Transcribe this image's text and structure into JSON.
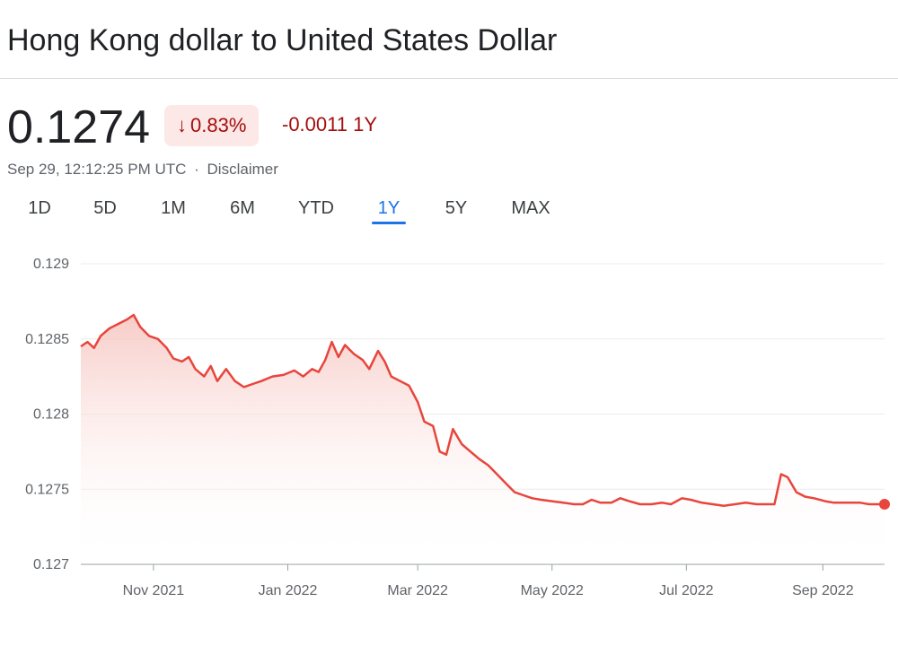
{
  "title": "Hong Kong dollar to United States Dollar",
  "quote": {
    "price": "0.1274",
    "change_arrow": "↓",
    "change_percent": "0.83%",
    "change_abs": "-0.0011 1Y",
    "timestamp": "Sep 29, 12:12:25 PM UTC",
    "separator": "·",
    "disclaimer": "Disclaimer"
  },
  "range_tabs": [
    {
      "label": "1D"
    },
    {
      "label": "5D"
    },
    {
      "label": "1M"
    },
    {
      "label": "6M"
    },
    {
      "label": "YTD"
    },
    {
      "label": "1Y",
      "active": true
    },
    {
      "label": "5Y"
    },
    {
      "label": "MAX"
    }
  ],
  "colors": {
    "line": "#e8453c",
    "fill_top": "#f6c6c1",
    "negative_text": "#a50e0e",
    "active_tab": "#1a73e8"
  },
  "chart_data": {
    "type": "area",
    "ylim": [
      0.127,
      0.129
    ],
    "yticks": [
      0.129,
      0.1285,
      0.128,
      0.1275,
      0.127
    ],
    "ytick_labels": [
      "0.129",
      "0.1285",
      "0.128",
      "0.1275",
      "0.127"
    ],
    "xlim": [
      "2021-09-29",
      "2022-09-29"
    ],
    "xticks": [
      {
        "date": "2021-11-01",
        "label": "Nov 2021"
      },
      {
        "date": "2022-01-01",
        "label": "Jan 2022"
      },
      {
        "date": "2022-03-01",
        "label": "Mar 2022"
      },
      {
        "date": "2022-05-01",
        "label": "May 2022"
      },
      {
        "date": "2022-07-01",
        "label": "Jul 2022"
      },
      {
        "date": "2022-09-01",
        "label": "Sep 2022"
      }
    ],
    "grid": true,
    "series": [
      {
        "points": [
          [
            "2021-09-29",
            0.12845
          ],
          [
            "2021-10-02",
            0.12848
          ],
          [
            "2021-10-05",
            0.12844
          ],
          [
            "2021-10-08",
            0.12852
          ],
          [
            "2021-10-12",
            0.12857
          ],
          [
            "2021-10-16",
            0.1286
          ],
          [
            "2021-10-20",
            0.12863
          ],
          [
            "2021-10-23",
            0.12866
          ],
          [
            "2021-10-26",
            0.12858
          ],
          [
            "2021-10-30",
            0.12852
          ],
          [
            "2021-11-03",
            0.1285
          ],
          [
            "2021-11-07",
            0.12844
          ],
          [
            "2021-11-10",
            0.12837
          ],
          [
            "2021-11-14",
            0.12835
          ],
          [
            "2021-11-17",
            0.12838
          ],
          [
            "2021-11-20",
            0.1283
          ],
          [
            "2021-11-24",
            0.12825
          ],
          [
            "2021-11-27",
            0.12832
          ],
          [
            "2021-11-30",
            0.12822
          ],
          [
            "2021-12-04",
            0.1283
          ],
          [
            "2021-12-08",
            0.12822
          ],
          [
            "2021-12-12",
            0.12818
          ],
          [
            "2021-12-16",
            0.1282
          ],
          [
            "2021-12-20",
            0.12822
          ],
          [
            "2021-12-25",
            0.12825
          ],
          [
            "2021-12-30",
            0.12826
          ],
          [
            "2022-01-04",
            0.12829
          ],
          [
            "2022-01-08",
            0.12825
          ],
          [
            "2022-01-12",
            0.1283
          ],
          [
            "2022-01-15",
            0.12828
          ],
          [
            "2022-01-18",
            0.12836
          ],
          [
            "2022-01-21",
            0.12848
          ],
          [
            "2022-01-24",
            0.12838
          ],
          [
            "2022-01-27",
            0.12846
          ],
          [
            "2022-01-31",
            0.1284
          ],
          [
            "2022-02-04",
            0.12836
          ],
          [
            "2022-02-07",
            0.1283
          ],
          [
            "2022-02-11",
            0.12842
          ],
          [
            "2022-02-14",
            0.12835
          ],
          [
            "2022-02-17",
            0.12825
          ],
          [
            "2022-02-21",
            0.12822
          ],
          [
            "2022-02-25",
            0.12819
          ],
          [
            "2022-03-01",
            0.12808
          ],
          [
            "2022-03-04",
            0.12795
          ],
          [
            "2022-03-08",
            0.12792
          ],
          [
            "2022-03-11",
            0.12775
          ],
          [
            "2022-03-14",
            0.12773
          ],
          [
            "2022-03-17",
            0.1279
          ],
          [
            "2022-03-21",
            0.1278
          ],
          [
            "2022-03-25",
            0.12775
          ],
          [
            "2022-03-29",
            0.1277
          ],
          [
            "2022-04-02",
            0.12766
          ],
          [
            "2022-04-06",
            0.1276
          ],
          [
            "2022-04-10",
            0.12754
          ],
          [
            "2022-04-14",
            0.12748
          ],
          [
            "2022-04-18",
            0.12746
          ],
          [
            "2022-04-22",
            0.12744
          ],
          [
            "2022-04-26",
            0.12743
          ],
          [
            "2022-05-01",
            0.12742
          ],
          [
            "2022-05-06",
            0.12741
          ],
          [
            "2022-05-11",
            0.1274
          ],
          [
            "2022-05-15",
            0.1274
          ],
          [
            "2022-05-19",
            0.12743
          ],
          [
            "2022-05-23",
            0.12741
          ],
          [
            "2022-05-28",
            0.12741
          ],
          [
            "2022-06-01",
            0.12744
          ],
          [
            "2022-06-05",
            0.12742
          ],
          [
            "2022-06-10",
            0.1274
          ],
          [
            "2022-06-15",
            0.1274
          ],
          [
            "2022-06-20",
            0.12741
          ],
          [
            "2022-06-24",
            0.1274
          ],
          [
            "2022-06-29",
            0.12744
          ],
          [
            "2022-07-03",
            0.12743
          ],
          [
            "2022-07-08",
            0.12741
          ],
          [
            "2022-07-13",
            0.1274
          ],
          [
            "2022-07-18",
            0.12739
          ],
          [
            "2022-07-23",
            0.1274
          ],
          [
            "2022-07-28",
            0.12741
          ],
          [
            "2022-08-02",
            0.1274
          ],
          [
            "2022-08-06",
            0.1274
          ],
          [
            "2022-08-10",
            0.1274
          ],
          [
            "2022-08-13",
            0.1276
          ],
          [
            "2022-08-16",
            0.12758
          ],
          [
            "2022-08-20",
            0.12748
          ],
          [
            "2022-08-24",
            0.12745
          ],
          [
            "2022-08-28",
            0.12744
          ],
          [
            "2022-09-02",
            0.12742
          ],
          [
            "2022-09-06",
            0.12741
          ],
          [
            "2022-09-10",
            0.12741
          ],
          [
            "2022-09-14",
            0.12741
          ],
          [
            "2022-09-18",
            0.12741
          ],
          [
            "2022-09-22",
            0.1274
          ],
          [
            "2022-09-26",
            0.1274
          ],
          [
            "2022-09-29",
            0.1274
          ]
        ]
      }
    ]
  }
}
